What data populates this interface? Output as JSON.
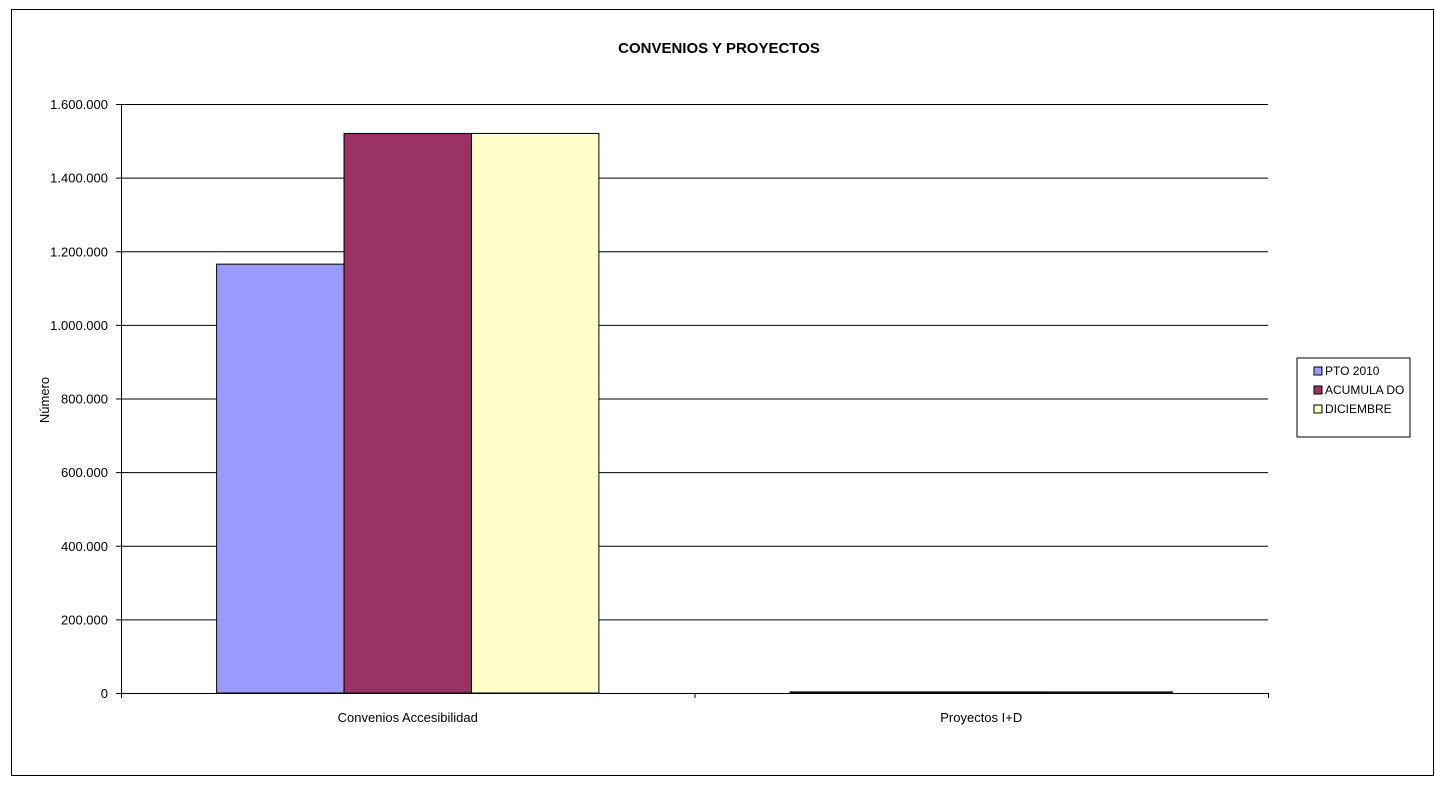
{
  "chart_data": {
    "type": "bar",
    "title": "CONVENIOS Y PROYECTOS",
    "xlabel": "",
    "ylabel": "Número",
    "categories": [
      "Convenios Accesibilidad",
      "Proyectos I+D"
    ],
    "series": [
      {
        "name": "PTO 2010",
        "values": [
          1165000,
          3000
        ],
        "color": "#9999ff"
      },
      {
        "name": "ACUMULADO",
        "values": [
          1520000,
          3000
        ],
        "color": "#993366"
      },
      {
        "name": "DICIEMBRE",
        "values": [
          1520000,
          3000
        ],
        "color": "#ffffcc"
      }
    ],
    "ylim": [
      0,
      1600000
    ],
    "yticks": [
      0,
      200000,
      400000,
      600000,
      800000,
      1000000,
      1200000,
      1400000,
      1600000
    ],
    "ytick_labels": [
      "0",
      "200.000",
      "400.000",
      "600.000",
      "800.000",
      "1.000.000",
      "1.200.000",
      "1.400.000",
      "1.600.000"
    ],
    "legend_labels": [
      "PTO 2010",
      "ACUMULA DO",
      "DICIEMBRE"
    ],
    "grid": true,
    "legend_position": "right"
  }
}
